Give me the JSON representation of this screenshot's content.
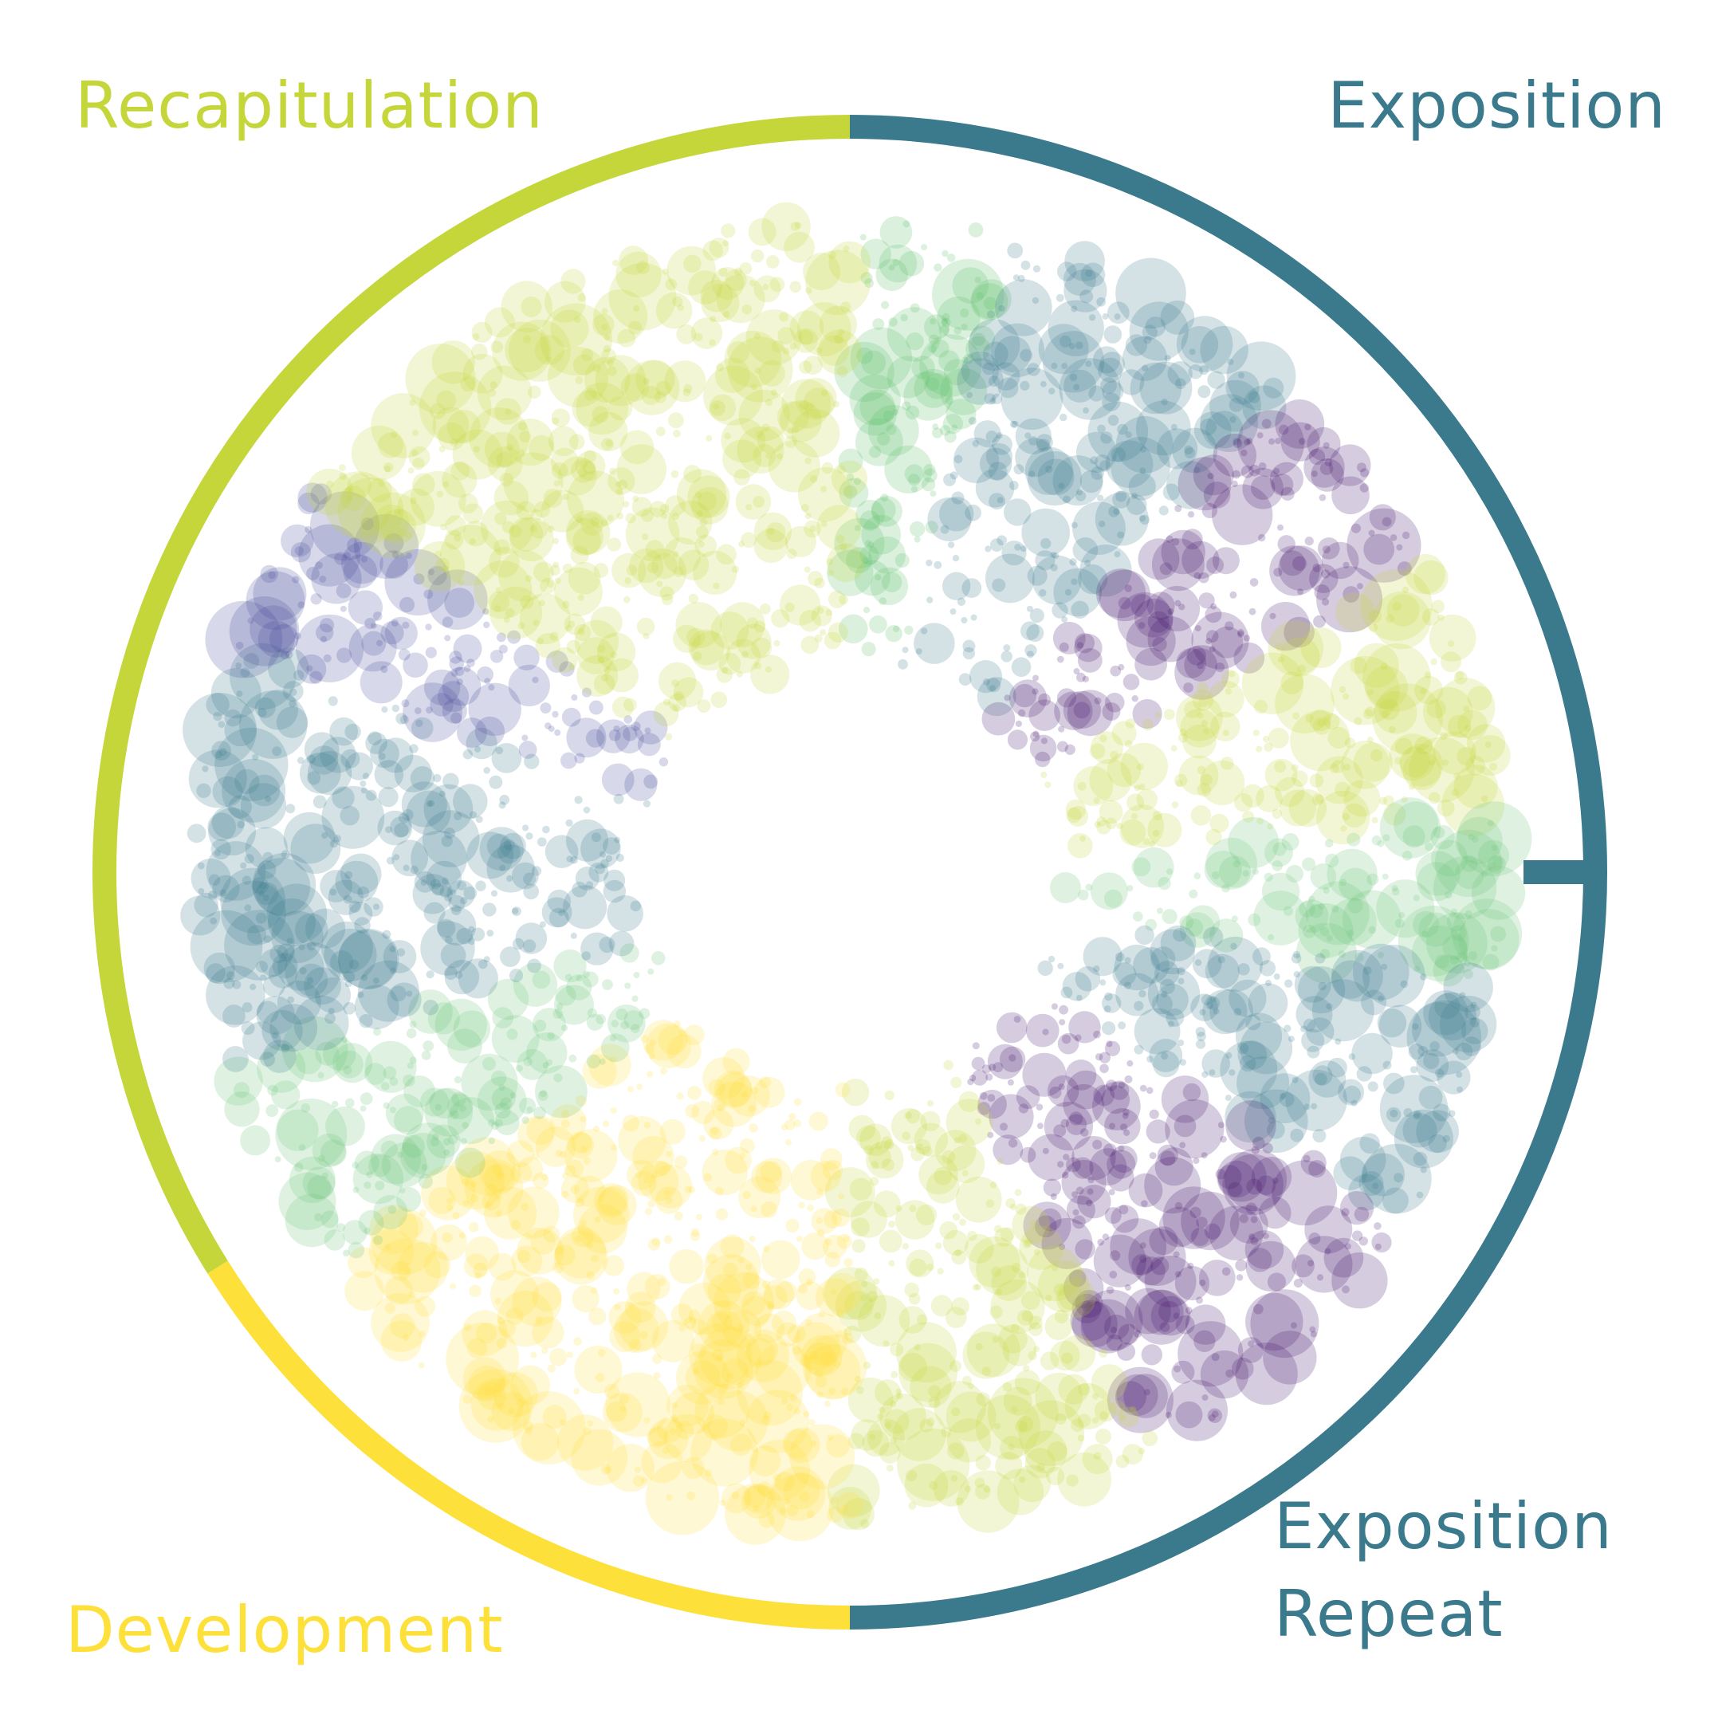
{
  "sections": [
    {
      "label": "Exposition",
      "color": "#3a7a8c"
    },
    {
      "label": "Exposition Repeat",
      "color": "#3a7a8c"
    },
    {
      "label": "Development",
      "color": "#fde13a"
    },
    {
      "label": "Recapitulation",
      "color": "#c4d63a"
    }
  ]
}
